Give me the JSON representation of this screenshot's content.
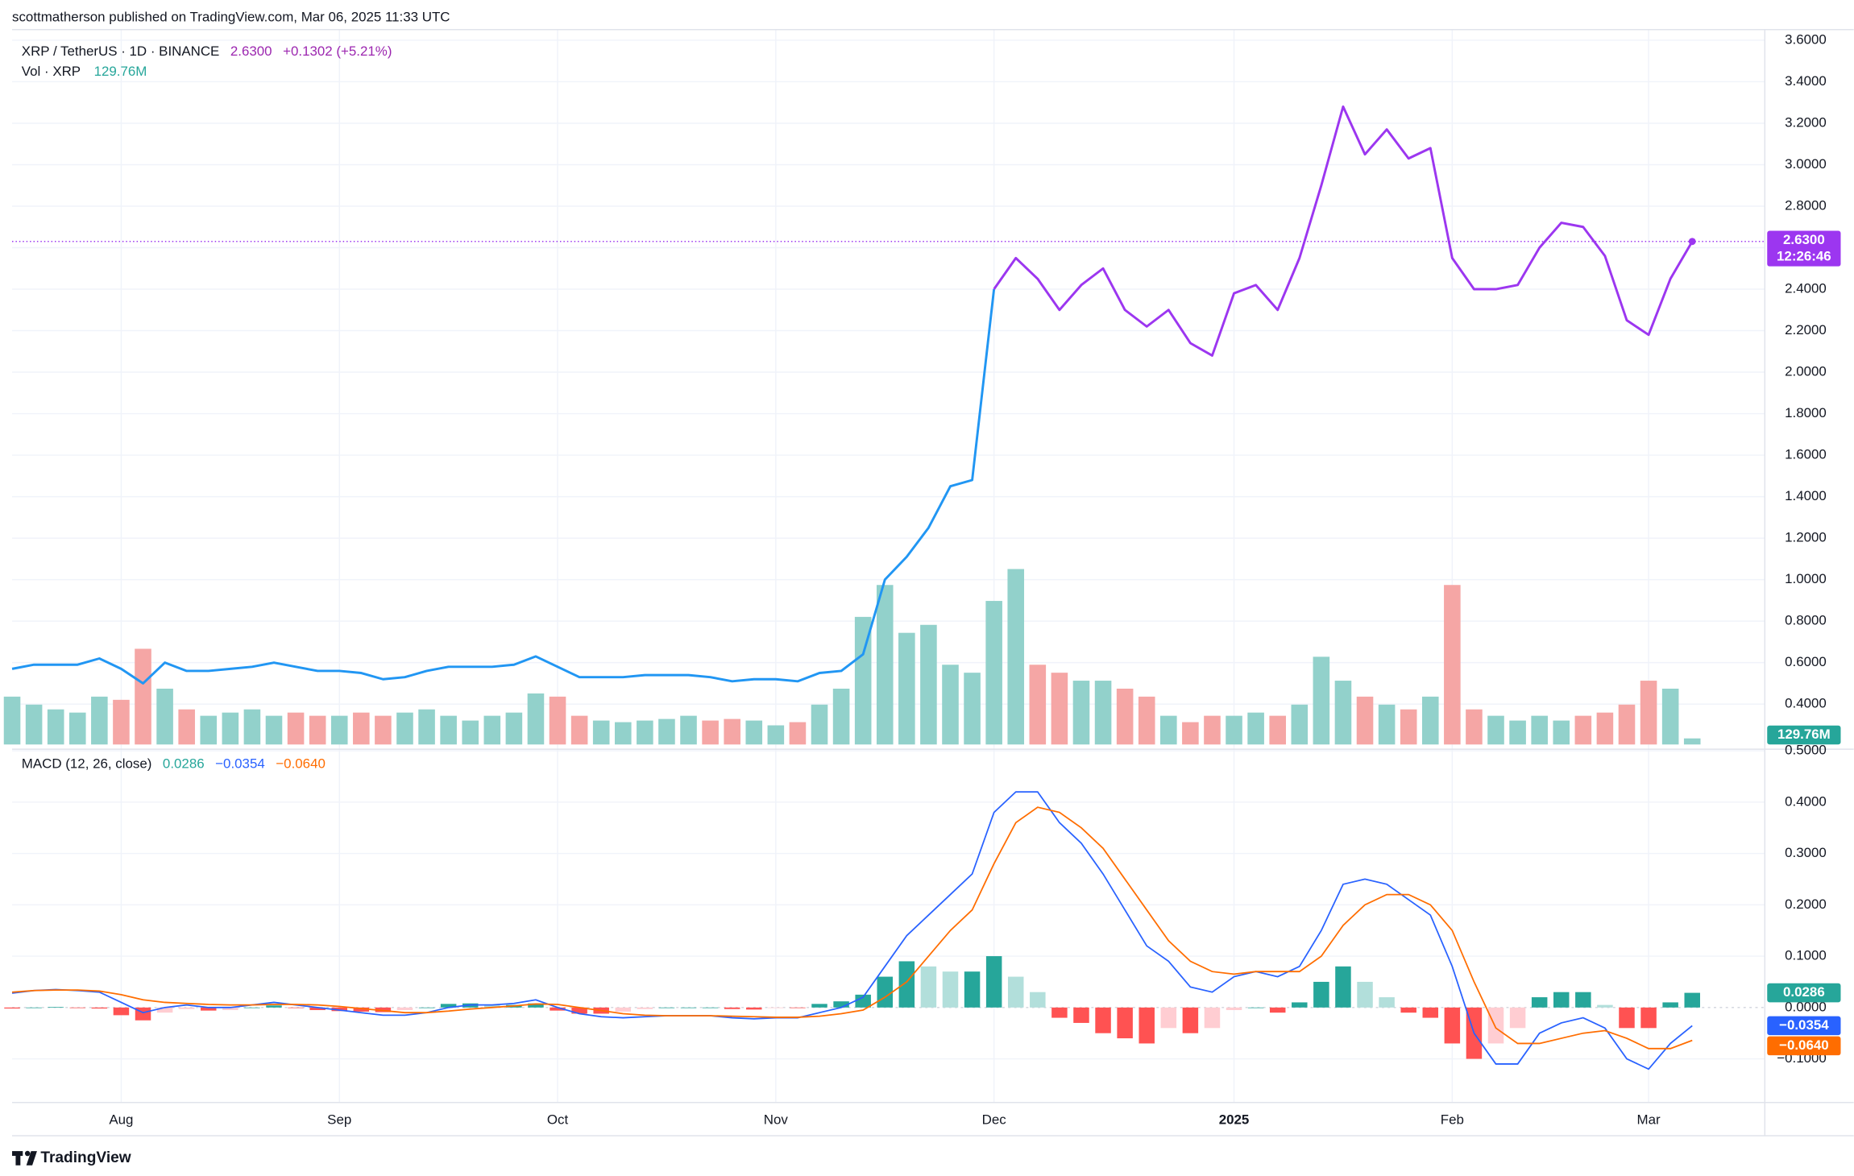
{
  "header": "scottmatherson published on TradingView.com, Mar 06, 2025 11:33 UTC",
  "footer": "TradingView",
  "chart_data": [
    {
      "type": "line",
      "title": "XRP / TetherUS · 1D · BINANCE",
      "value_label": "2.6300",
      "change": "+0.1302 (+5.21%)",
      "countdown": "12:26:46",
      "grid": true,
      "categories": [
        null,
        null,
        null,
        null,
        null,
        "Aug",
        null,
        null,
        null,
        null,
        null,
        null,
        null,
        null,
        null,
        "Sep",
        null,
        null,
        null,
        null,
        null,
        null,
        null,
        null,
        null,
        "Oct",
        null,
        null,
        null,
        null,
        null,
        null,
        null,
        null,
        null,
        "Nov",
        null,
        null,
        null,
        null,
        null,
        null,
        null,
        null,
        null,
        "Dec",
        null,
        null,
        null,
        null,
        null,
        null,
        null,
        null,
        null,
        null,
        "2025",
        null,
        null,
        null,
        null,
        null,
        null,
        null,
        null,
        null,
        "Feb",
        null,
        null,
        null,
        null,
        null,
        null,
        null,
        null,
        "Mar",
        null,
        null
      ],
      "series": [
        {
          "color": "#2196f3",
          "values": [
            0.57,
            0.59,
            0.59,
            0.59,
            0.62,
            0.57,
            0.5,
            0.6,
            0.56,
            0.56,
            0.57,
            0.58,
            0.6,
            0.58,
            0.56,
            0.56,
            0.55,
            0.52,
            0.53,
            0.56,
            0.58,
            0.58,
            0.58,
            0.59,
            0.63,
            0.58,
            0.53,
            0.53,
            0.53,
            0.54,
            0.54,
            0.54,
            0.53,
            0.51,
            0.52,
            0.52,
            0.51,
            0.55,
            0.56,
            0.64,
            1.0,
            1.11,
            1.25,
            1.45,
            1.48,
            2.4,
            null,
            null,
            null,
            null,
            null,
            null,
            null,
            null,
            null,
            null,
            null,
            null,
            null,
            null,
            null,
            null,
            null,
            null,
            null,
            null,
            null,
            null,
            null,
            null,
            null,
            null,
            null,
            null,
            null,
            null,
            null,
            null
          ]
        },
        {
          "color": "#9c36f0",
          "values": [
            null,
            null,
            null,
            null,
            null,
            null,
            null,
            null,
            null,
            null,
            null,
            null,
            null,
            null,
            null,
            null,
            null,
            null,
            null,
            null,
            null,
            null,
            null,
            null,
            null,
            null,
            null,
            null,
            null,
            null,
            null,
            null,
            null,
            null,
            null,
            null,
            null,
            null,
            null,
            null,
            null,
            null,
            null,
            null,
            null,
            2.4,
            2.55,
            2.45,
            2.3,
            2.42,
            2.5,
            2.3,
            2.22,
            2.3,
            2.14,
            2.08,
            2.38,
            2.42,
            2.3,
            2.55,
            2.9,
            3.28,
            3.05,
            3.17,
            3.03,
            3.08,
            2.55,
            2.4,
            2.4,
            2.42,
            2.6,
            2.72,
            2.7,
            2.56,
            2.25,
            2.18,
            2.45,
            2.63
          ]
        }
      ],
      "ylim": [
        0.194,
        3.651
      ],
      "yticks": [
        {
          "value": 0.4,
          "label": "0.4000"
        },
        {
          "value": 0.6,
          "label": "0.6000"
        },
        {
          "value": 0.8,
          "label": "0.8000"
        },
        {
          "value": 1.0,
          "label": "1.0000"
        },
        {
          "value": 1.2,
          "label": "1.2000"
        },
        {
          "value": 1.4,
          "label": "1.4000"
        },
        {
          "value": 1.6,
          "label": "1.6000"
        },
        {
          "value": 1.8,
          "label": "1.8000"
        },
        {
          "value": 2.0,
          "label": "2.0000"
        },
        {
          "value": 2.2,
          "label": "2.2000"
        },
        {
          "value": 2.4,
          "label": "2.4000"
        },
        {
          "value": 2.6,
          "label": "2.6000"
        },
        {
          "value": 2.8,
          "label": "2.8000"
        },
        {
          "value": 3.0,
          "label": "3.0000"
        },
        {
          "value": 3.2,
          "label": "3.2000"
        },
        {
          "value": 3.4,
          "label": "3.4000"
        },
        {
          "value": 3.6,
          "label": "3.6000"
        }
      ],
      "volume": {
        "label": "Vol · XRP",
        "last_label": "129.76M",
        "up_color": "#92d1cb",
        "down_color": "#f5a6a5",
        "tag_color": "#26a69a",
        "values": [
          1020,
          850,
          748,
          680,
          1020,
          952,
          2040,
          1190,
          748,
          612,
          680,
          748,
          612,
          680,
          612,
          612,
          680,
          612,
          680,
          748,
          612,
          510,
          612,
          680,
          1088,
          1020,
          612,
          510,
          476,
          510,
          544,
          612,
          510,
          544,
          510,
          408,
          476,
          850,
          1190,
          2720,
          3400,
          2380,
          2550,
          1700,
          1530,
          3060,
          3740,
          1700,
          1530,
          1360,
          1360,
          1190,
          1020,
          612,
          476,
          612,
          612,
          680,
          612,
          850,
          1870,
          1360,
          1020,
          850,
          748,
          1020,
          3400,
          748,
          612,
          510,
          612,
          510,
          612,
          680,
          850,
          1360,
          1190,
          129.76
        ]
      }
    },
    {
      "type": "macd",
      "title": "MACD (12, 26, close)",
      "ylim": [
        -0.185,
        0.503
      ],
      "yticks": [
        {
          "value": -0.1,
          "label": "−0.1000"
        },
        {
          "value": 0,
          "label": "0.0000"
        },
        {
          "value": 0.1,
          "label": "0.1000"
        },
        {
          "value": 0.2,
          "label": "0.2000"
        },
        {
          "value": 0.3,
          "label": "0.3000"
        },
        {
          "value": 0.4,
          "label": "0.4000"
        },
        {
          "value": 0.5,
          "label": "0.5000"
        }
      ],
      "histogram": {
        "last_label": "0.0286",
        "colors": [
          "#26a69a",
          "#b2dfdb",
          "#ff5252",
          "#ffcdd2"
        ],
        "values": [
          -0.002,
          0,
          0.001,
          -0.001,
          -0.002,
          -0.015,
          -0.025,
          -0.01,
          -0.003,
          -0.006,
          -0.005,
          0,
          0.004,
          -0.001,
          -0.005,
          -0.007,
          -0.008,
          -0.009,
          -0.005,
          0,
          0.007,
          0.008,
          0.005,
          0.005,
          0.008,
          -0.006,
          -0.012,
          -0.012,
          -0.008,
          -0.003,
          0,
          0,
          0,
          -0.003,
          -0.004,
          -0.001,
          -0.001,
          0.007,
          0.012,
          0.025,
          0.06,
          0.09,
          0.08,
          0.07,
          0.07,
          0.1,
          0.06,
          0.03,
          -0.02,
          -0.03,
          -0.05,
          -0.06,
          -0.07,
          -0.04,
          -0.05,
          -0.04,
          -0.005,
          0,
          -0.01,
          0.01,
          0.05,
          0.08,
          0.05,
          0.02,
          -0.01,
          -0.02,
          -0.07,
          -0.1,
          -0.07,
          -0.04,
          0.02,
          0.03,
          0.03,
          0.005,
          -0.04,
          -0.04,
          0.01,
          0.0286
        ]
      },
      "series": [
        {
          "color": "#2962ff",
          "last_label": "−0.0354",
          "values": [
            0.028,
            0.033,
            0.035,
            0.033,
            0.03,
            0.01,
            -0.01,
            0,
            0.005,
            0,
            0,
            0.005,
            0.01,
            0.005,
            0,
            -0.005,
            -0.01,
            -0.015,
            -0.015,
            -0.01,
            0,
            0.005,
            0.005,
            0.008,
            0.015,
            0,
            -0.012,
            -0.018,
            -0.02,
            -0.018,
            -0.016,
            -0.016,
            -0.016,
            -0.02,
            -0.022,
            -0.02,
            -0.02,
            -0.01,
            0,
            0.02,
            0.08,
            0.14,
            0.18,
            0.22,
            0.26,
            0.38,
            0.42,
            0.42,
            0.36,
            0.32,
            0.26,
            0.19,
            0.12,
            0.09,
            0.04,
            0.03,
            0.06,
            0.07,
            0.06,
            0.08,
            0.15,
            0.24,
            0.25,
            0.24,
            0.21,
            0.18,
            0.08,
            -0.05,
            -0.11,
            -0.11,
            -0.05,
            -0.03,
            -0.02,
            -0.04,
            -0.1,
            -0.12,
            -0.07,
            -0.0354
          ]
        },
        {
          "color": "#ff6d00",
          "last_label": "−0.0640",
          "values": [
            0.03,
            0.033,
            0.034,
            0.034,
            0.032,
            0.025,
            0.015,
            0.01,
            0.008,
            0.006,
            0.005,
            0.005,
            0.006,
            0.006,
            0.005,
            0.002,
            -0.002,
            -0.006,
            -0.01,
            -0.01,
            -0.007,
            -0.003,
            0,
            0.003,
            0.007,
            0.006,
            0,
            -0.006,
            -0.012,
            -0.015,
            -0.016,
            -0.016,
            -0.016,
            -0.017,
            -0.018,
            -0.019,
            -0.019,
            -0.017,
            -0.012,
            -0.005,
            0.02,
            0.05,
            0.1,
            0.15,
            0.19,
            0.28,
            0.36,
            0.39,
            0.38,
            0.35,
            0.31,
            0.25,
            0.19,
            0.13,
            0.09,
            0.07,
            0.065,
            0.07,
            0.07,
            0.07,
            0.1,
            0.16,
            0.2,
            0.22,
            0.22,
            0.2,
            0.15,
            0.05,
            -0.04,
            -0.07,
            -0.07,
            -0.06,
            -0.05,
            -0.045,
            -0.06,
            -0.08,
            -0.08,
            -0.064
          ]
        }
      ]
    }
  ]
}
